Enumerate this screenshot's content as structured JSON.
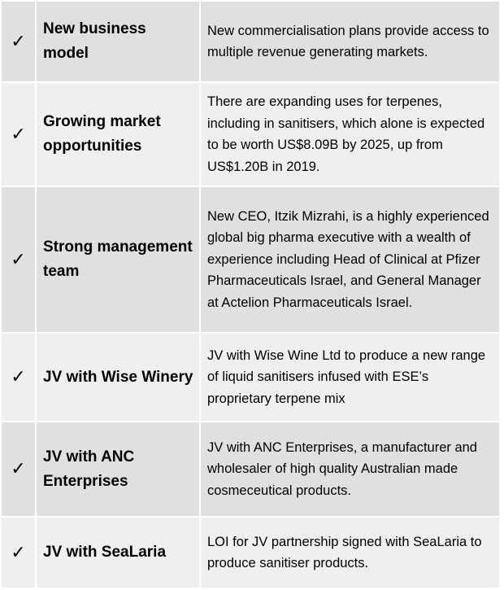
{
  "check_symbol": "✓",
  "rows": [
    {
      "title": "New business model",
      "description": "New commercialisation plans provide access to multiple revenue generating markets."
    },
    {
      "title": "Growing market opportunities",
      "description": "There are expanding uses for terpenes, including in sanitisers, which alone is expected to be worth US$8.09B by 2025, up from US$1.20B in 2019."
    },
    {
      "title": "Strong management team",
      "description": "New CEO, Itzik Mizrahi, is a highly experienced global big pharma executive with a wealth of experience including Head of Clinical at Pfizer Pharmaceuticals Israel, and General Manager at Actelion Pharmaceuticals Israel."
    },
    {
      "title": "JV with Wise Winery",
      "description": "JV with Wise Wine Ltd to produce a new range of liquid sanitisers infused with ESE’s proprietary terpene mix"
    },
    {
      "title": "JV with ANC Enterprises",
      "description": "JV with ANC Enterprises, a manufacturer and wholesaler of high quality Australian made cosmeceutical products."
    },
    {
      "title": "JV with SeaLaria",
      "description": "LOI for JV partnership signed with SeaLaria to produce sanitiser products."
    }
  ]
}
